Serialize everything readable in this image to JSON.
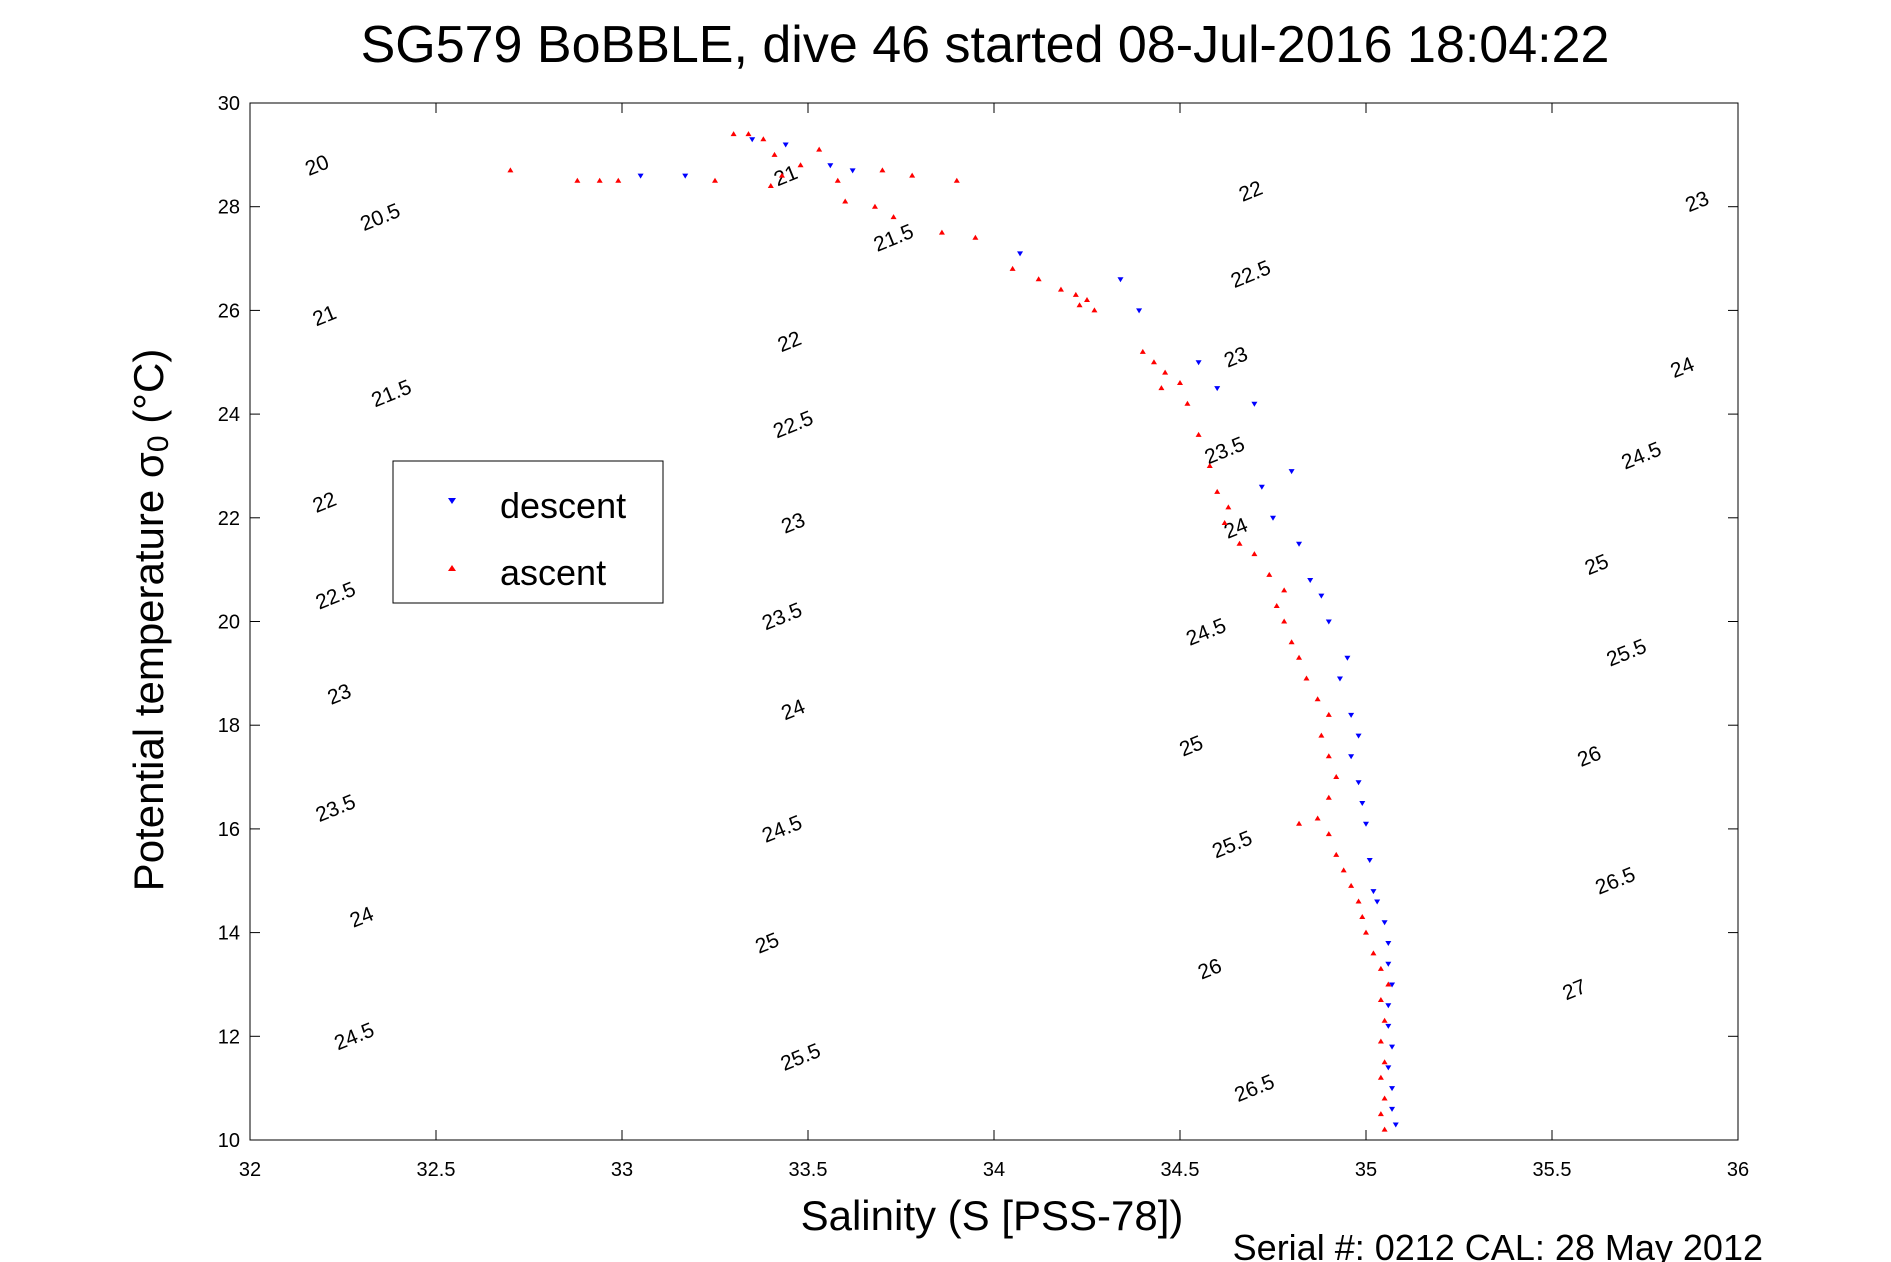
{
  "chart_data": {
    "type": "scatter",
    "title": "SG579 BoBBLE, dive 46 started 08-Jul-2016 18:04:22",
    "xlabel": "Salinity (S [PSS-78])",
    "ylabel_main": "Potential temperature σ",
    "ylabel_sub": "0",
    "ylabel_unit": " (°C)",
    "footer": "Serial #: 0212  CAL: 28 May 2012",
    "xlim": [
      32,
      36
    ],
    "ylim": [
      10,
      30
    ],
    "x_ticks": [
      32,
      32.5,
      33,
      33.5,
      34,
      34.5,
      35,
      35.5,
      36
    ],
    "x_tick_labels": [
      "32",
      "32.5",
      "33",
      "33.5",
      "34",
      "34.5",
      "35",
      "35.5",
      "36"
    ],
    "y_ticks": [
      10,
      12,
      14,
      16,
      18,
      20,
      22,
      24,
      26,
      28,
      30
    ],
    "y_tick_labels": [
      "10",
      "12",
      "14",
      "16",
      "18",
      "20",
      "22",
      "24",
      "26",
      "28",
      "30"
    ],
    "legend_position": "upper-left",
    "contours": {
      "levels": [
        20,
        20.5,
        21,
        21.5,
        22,
        22.5,
        23,
        23.5,
        24,
        24.5,
        25,
        25.5,
        26,
        26.5,
        27
      ],
      "labels": [
        {
          "text": "20",
          "s": 32.18,
          "t": 28.8
        },
        {
          "text": "20.5",
          "s": 32.35,
          "t": 27.8
        },
        {
          "text": "21",
          "s": 32.2,
          "t": 25.9
        },
        {
          "text": "21.5",
          "s": 32.38,
          "t": 24.4
        },
        {
          "text": "22",
          "s": 32.2,
          "t": 22.3
        },
        {
          "text": "22.5",
          "s": 32.23,
          "t": 20.5
        },
        {
          "text": "23",
          "s": 32.24,
          "t": 18.6
        },
        {
          "text": "23.5",
          "s": 32.23,
          "t": 16.4
        },
        {
          "text": "24",
          "s": 32.3,
          "t": 14.3
        },
        {
          "text": "24.5",
          "s": 32.28,
          "t": 12.0
        },
        {
          "text": "21",
          "s": 33.44,
          "t": 28.6
        },
        {
          "text": "21.5",
          "s": 33.73,
          "t": 27.4
        },
        {
          "text": "22",
          "s": 33.45,
          "t": 25.4
        },
        {
          "text": "22.5",
          "s": 33.46,
          "t": 23.8
        },
        {
          "text": "23",
          "s": 33.46,
          "t": 21.9
        },
        {
          "text": "23.5",
          "s": 33.43,
          "t": 20.1
        },
        {
          "text": "24",
          "s": 33.46,
          "t": 18.3
        },
        {
          "text": "24.5",
          "s": 33.43,
          "t": 16.0
        },
        {
          "text": "25",
          "s": 33.39,
          "t": 13.8
        },
        {
          "text": "25.5",
          "s": 33.48,
          "t": 11.6
        },
        {
          "text": "22",
          "s": 34.69,
          "t": 28.3
        },
        {
          "text": "22.5",
          "s": 34.69,
          "t": 26.7
        },
        {
          "text": "23",
          "s": 34.65,
          "t": 25.1
        },
        {
          "text": "23.5",
          "s": 34.62,
          "t": 23.3
        },
        {
          "text": "24",
          "s": 34.65,
          "t": 21.8
        },
        {
          "text": "24.5",
          "s": 34.57,
          "t": 19.8
        },
        {
          "text": "25",
          "s": 34.53,
          "t": 17.6
        },
        {
          "text": "25.5",
          "s": 34.64,
          "t": 15.7
        },
        {
          "text": "26",
          "s": 34.58,
          "t": 13.3
        },
        {
          "text": "26.5",
          "s": 34.7,
          "t": 11.0
        },
        {
          "text": "23",
          "s": 35.89,
          "t": 28.1
        },
        {
          "text": "24",
          "s": 35.85,
          "t": 24.9
        },
        {
          "text": "24.5",
          "s": 35.74,
          "t": 23.2
        },
        {
          "text": "25",
          "s": 35.62,
          "t": 21.1
        },
        {
          "text": "25.5",
          "s": 35.7,
          "t": 19.4
        },
        {
          "text": "26",
          "s": 35.6,
          "t": 17.4
        },
        {
          "text": "26.5",
          "s": 35.67,
          "t": 15.0
        },
        {
          "text": "27",
          "s": 35.56,
          "t": 12.9
        }
      ]
    },
    "series": [
      {
        "name": "descent",
        "color": "#0000ff",
        "marker": "triangle-down",
        "points": [
          [
            33.05,
            28.6
          ],
          [
            33.17,
            28.6
          ],
          [
            33.35,
            29.3
          ],
          [
            33.44,
            29.2
          ],
          [
            33.56,
            28.8
          ],
          [
            33.62,
            28.7
          ],
          [
            34.07,
            27.1
          ],
          [
            34.34,
            26.6
          ],
          [
            34.39,
            26.0
          ],
          [
            34.55,
            25.0
          ],
          [
            34.6,
            24.5
          ],
          [
            34.7,
            24.2
          ],
          [
            34.72,
            22.6
          ],
          [
            34.75,
            22.0
          ],
          [
            34.82,
            21.5
          ],
          [
            34.8,
            22.9
          ],
          [
            34.85,
            20.8
          ],
          [
            34.88,
            20.5
          ],
          [
            34.9,
            20.0
          ],
          [
            34.95,
            19.3
          ],
          [
            34.93,
            18.9
          ],
          [
            34.96,
            18.2
          ],
          [
            34.98,
            17.8
          ],
          [
            34.96,
            17.4
          ],
          [
            34.98,
            16.9
          ],
          [
            34.99,
            16.5
          ],
          [
            35.0,
            16.1
          ],
          [
            35.01,
            15.4
          ],
          [
            35.02,
            14.8
          ],
          [
            35.03,
            14.6
          ],
          [
            35.05,
            14.2
          ],
          [
            35.06,
            13.8
          ],
          [
            35.06,
            13.4
          ],
          [
            35.07,
            13.0
          ],
          [
            35.06,
            12.6
          ],
          [
            35.06,
            12.2
          ],
          [
            35.07,
            11.8
          ],
          [
            35.06,
            11.4
          ],
          [
            35.07,
            11.0
          ],
          [
            35.07,
            10.6
          ],
          [
            35.08,
            10.3
          ]
        ]
      },
      {
        "name": "ascent",
        "color": "#ff0000",
        "marker": "triangle-up",
        "points": [
          [
            32.7,
            28.7
          ],
          [
            32.88,
            28.5
          ],
          [
            32.94,
            28.5
          ],
          [
            32.99,
            28.5
          ],
          [
            33.25,
            28.5
          ],
          [
            33.3,
            29.4
          ],
          [
            33.34,
            29.4
          ],
          [
            33.38,
            29.3
          ],
          [
            33.41,
            29.0
          ],
          [
            33.43,
            28.6
          ],
          [
            33.4,
            28.4
          ],
          [
            33.48,
            28.8
          ],
          [
            33.53,
            29.1
          ],
          [
            33.58,
            28.5
          ],
          [
            33.6,
            28.1
          ],
          [
            33.7,
            28.7
          ],
          [
            33.68,
            28.0
          ],
          [
            33.78,
            28.6
          ],
          [
            33.73,
            27.8
          ],
          [
            33.9,
            28.5
          ],
          [
            33.86,
            27.5
          ],
          [
            33.95,
            27.4
          ],
          [
            34.05,
            26.8
          ],
          [
            34.12,
            26.6
          ],
          [
            34.18,
            26.4
          ],
          [
            34.22,
            26.3
          ],
          [
            34.25,
            26.2
          ],
          [
            34.27,
            26.0
          ],
          [
            34.23,
            26.1
          ],
          [
            34.4,
            25.2
          ],
          [
            34.43,
            25.0
          ],
          [
            34.46,
            24.8
          ],
          [
            34.5,
            24.6
          ],
          [
            34.45,
            24.5
          ],
          [
            34.52,
            24.2
          ],
          [
            34.55,
            23.6
          ],
          [
            34.58,
            23.0
          ],
          [
            34.6,
            22.5
          ],
          [
            34.63,
            22.2
          ],
          [
            34.62,
            21.9
          ],
          [
            34.66,
            21.5
          ],
          [
            34.7,
            21.3
          ],
          [
            34.74,
            20.9
          ],
          [
            34.78,
            20.6
          ],
          [
            34.76,
            20.3
          ],
          [
            34.78,
            20.0
          ],
          [
            34.8,
            19.6
          ],
          [
            34.82,
            19.3
          ],
          [
            34.84,
            18.9
          ],
          [
            34.87,
            18.5
          ],
          [
            34.9,
            18.2
          ],
          [
            34.88,
            17.8
          ],
          [
            34.9,
            17.4
          ],
          [
            34.92,
            17.0
          ],
          [
            34.9,
            16.6
          ],
          [
            34.82,
            16.1
          ],
          [
            34.87,
            16.2
          ],
          [
            34.9,
            15.9
          ],
          [
            34.92,
            15.5
          ],
          [
            34.94,
            15.2
          ],
          [
            34.96,
            14.9
          ],
          [
            34.98,
            14.6
          ],
          [
            34.99,
            14.3
          ],
          [
            35.0,
            14.0
          ],
          [
            35.02,
            13.6
          ],
          [
            35.04,
            13.3
          ],
          [
            35.06,
            13.0
          ],
          [
            35.04,
            12.7
          ],
          [
            35.05,
            12.3
          ],
          [
            35.04,
            11.9
          ],
          [
            35.05,
            11.5
          ],
          [
            35.04,
            11.2
          ],
          [
            35.05,
            10.8
          ],
          [
            35.04,
            10.5
          ],
          [
            35.05,
            10.2
          ]
        ]
      }
    ]
  }
}
